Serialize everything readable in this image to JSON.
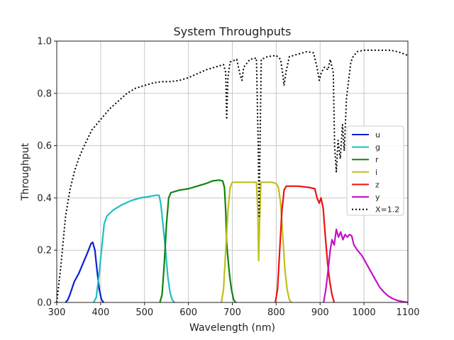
{
  "chart_data": {
    "type": "line",
    "title": "System Throughputs",
    "xlabel": "Wavelength (nm)",
    "ylabel": "Throughput",
    "xlim": [
      300,
      1100
    ],
    "ylim": [
      0.0,
      1.0
    ],
    "x_ticks": [
      "300",
      "400",
      "500",
      "600",
      "700",
      "800",
      "900",
      "1000",
      "1100"
    ],
    "y_ticks": [
      "0.0",
      "0.2",
      "0.4",
      "0.6",
      "0.8",
      "1.0"
    ],
    "grid": true,
    "legend_position": "right",
    "series": [
      {
        "name": "u",
        "color": "#0a1fd6",
        "style": "solid",
        "points": [
          [
            320,
            0
          ],
          [
            325,
            0.01
          ],
          [
            330,
            0.03
          ],
          [
            340,
            0.08
          ],
          [
            350,
            0.11
          ],
          [
            360,
            0.15
          ],
          [
            370,
            0.19
          ],
          [
            378,
            0.225
          ],
          [
            382,
            0.23
          ],
          [
            387,
            0.2
          ],
          [
            392,
            0.12
          ],
          [
            397,
            0.05
          ],
          [
            402,
            0.01
          ],
          [
            407,
            0
          ]
        ]
      },
      {
        "name": "g",
        "color": "#1ebfbf",
        "style": "solid",
        "points": [
          [
            384,
            0
          ],
          [
            390,
            0.02
          ],
          [
            396,
            0.1
          ],
          [
            402,
            0.2
          ],
          [
            408,
            0.3
          ],
          [
            414,
            0.33
          ],
          [
            430,
            0.355
          ],
          [
            450,
            0.375
          ],
          [
            470,
            0.39
          ],
          [
            490,
            0.4
          ],
          [
            510,
            0.405
          ],
          [
            525,
            0.41
          ],
          [
            533,
            0.41
          ],
          [
            537,
            0.38
          ],
          [
            542,
            0.3
          ],
          [
            548,
            0.2
          ],
          [
            553,
            0.1
          ],
          [
            558,
            0.04
          ],
          [
            563,
            0.01
          ],
          [
            568,
            0
          ]
        ]
      },
      {
        "name": "r",
        "color": "#118311",
        "style": "solid",
        "points": [
          [
            535,
            0
          ],
          [
            540,
            0.03
          ],
          [
            545,
            0.15
          ],
          [
            550,
            0.3
          ],
          [
            555,
            0.4
          ],
          [
            560,
            0.42
          ],
          [
            580,
            0.43
          ],
          [
            600,
            0.435
          ],
          [
            620,
            0.445
          ],
          [
            640,
            0.455
          ],
          [
            655,
            0.465
          ],
          [
            670,
            0.468
          ],
          [
            678,
            0.465
          ],
          [
            682,
            0.44
          ],
          [
            685,
            0.35
          ],
          [
            687,
            0.23
          ],
          [
            690,
            0.17
          ],
          [
            694,
            0.1
          ],
          [
            698,
            0.05
          ],
          [
            703,
            0.01
          ],
          [
            708,
            0
          ]
        ]
      },
      {
        "name": "i",
        "color": "#bfbf1f",
        "style": "solid",
        "points": [
          [
            675,
            0
          ],
          [
            680,
            0.05
          ],
          [
            685,
            0.2
          ],
          [
            690,
            0.35
          ],
          [
            695,
            0.44
          ],
          [
            700,
            0.46
          ],
          [
            720,
            0.46
          ],
          [
            740,
            0.46
          ],
          [
            755,
            0.46
          ],
          [
            758,
            0.35
          ],
          [
            760,
            0.16
          ],
          [
            762,
            0.3
          ],
          [
            765,
            0.46
          ],
          [
            790,
            0.46
          ],
          [
            800,
            0.455
          ],
          [
            805,
            0.44
          ],
          [
            810,
            0.38
          ],
          [
            815,
            0.25
          ],
          [
            820,
            0.12
          ],
          [
            825,
            0.05
          ],
          [
            830,
            0.01
          ],
          [
            835,
            0
          ]
        ]
      },
      {
        "name": "z",
        "color": "#f01010",
        "style": "solid",
        "points": [
          [
            798,
            0
          ],
          [
            803,
            0.05
          ],
          [
            808,
            0.2
          ],
          [
            813,
            0.35
          ],
          [
            818,
            0.43
          ],
          [
            823,
            0.445
          ],
          [
            850,
            0.445
          ],
          [
            875,
            0.44
          ],
          [
            888,
            0.435
          ],
          [
            893,
            0.4
          ],
          [
            898,
            0.38
          ],
          [
            902,
            0.4
          ],
          [
            907,
            0.36
          ],
          [
            912,
            0.25
          ],
          [
            917,
            0.15
          ],
          [
            922,
            0.08
          ],
          [
            927,
            0.03
          ],
          [
            932,
            0
          ]
        ]
      },
      {
        "name": "y",
        "color": "#c411c4",
        "style": "solid",
        "points": [
          [
            908,
            0
          ],
          [
            913,
            0.05
          ],
          [
            918,
            0.12
          ],
          [
            923,
            0.2
          ],
          [
            927,
            0.24
          ],
          [
            932,
            0.22
          ],
          [
            937,
            0.28
          ],
          [
            942,
            0.25
          ],
          [
            947,
            0.27
          ],
          [
            952,
            0.24
          ],
          [
            957,
            0.26
          ],
          [
            962,
            0.25
          ],
          [
            967,
            0.26
          ],
          [
            972,
            0.255
          ],
          [
            977,
            0.22
          ],
          [
            985,
            0.2
          ],
          [
            995,
            0.18
          ],
          [
            1005,
            0.15
          ],
          [
            1015,
            0.12
          ],
          [
            1025,
            0.09
          ],
          [
            1035,
            0.06
          ],
          [
            1045,
            0.04
          ],
          [
            1055,
            0.025
          ],
          [
            1065,
            0.015
          ],
          [
            1075,
            0.008
          ],
          [
            1085,
            0.004
          ],
          [
            1095,
            0.002
          ],
          [
            1100,
            0
          ]
        ]
      },
      {
        "name": "X=1.2",
        "color": "#000000",
        "style": "dotted",
        "points": [
          [
            300,
            0
          ],
          [
            310,
            0.15
          ],
          [
            320,
            0.33
          ],
          [
            330,
            0.43
          ],
          [
            340,
            0.5
          ],
          [
            350,
            0.55
          ],
          [
            360,
            0.59
          ],
          [
            380,
            0.66
          ],
          [
            400,
            0.7
          ],
          [
            420,
            0.74
          ],
          [
            440,
            0.77
          ],
          [
            460,
            0.8
          ],
          [
            480,
            0.82
          ],
          [
            500,
            0.83
          ],
          [
            520,
            0.84
          ],
          [
            540,
            0.845
          ],
          [
            560,
            0.845
          ],
          [
            580,
            0.85
          ],
          [
            600,
            0.86
          ],
          [
            620,
            0.875
          ],
          [
            640,
            0.89
          ],
          [
            660,
            0.9
          ],
          [
            680,
            0.91
          ],
          [
            685,
            0.88
          ],
          [
            687,
            0.7
          ],
          [
            690,
            0.86
          ],
          [
            695,
            0.92
          ],
          [
            710,
            0.93
          ],
          [
            718,
            0.87
          ],
          [
            722,
            0.85
          ],
          [
            726,
            0.9
          ],
          [
            740,
            0.93
          ],
          [
            755,
            0.935
          ],
          [
            759,
            0.6
          ],
          [
            761,
            0.33
          ],
          [
            763,
            0.6
          ],
          [
            766,
            0.93
          ],
          [
            780,
            0.94
          ],
          [
            800,
            0.945
          ],
          [
            810,
            0.93
          ],
          [
            815,
            0.87
          ],
          [
            818,
            0.83
          ],
          [
            822,
            0.88
          ],
          [
            830,
            0.94
          ],
          [
            850,
            0.95
          ],
          [
            870,
            0.96
          ],
          [
            885,
            0.955
          ],
          [
            893,
            0.9
          ],
          [
            898,
            0.85
          ],
          [
            903,
            0.88
          ],
          [
            910,
            0.9
          ],
          [
            918,
            0.89
          ],
          [
            923,
            0.93
          ],
          [
            930,
            0.88
          ],
          [
            933,
            0.6
          ],
          [
            937,
            0.5
          ],
          [
            941,
            0.62
          ],
          [
            946,
            0.55
          ],
          [
            951,
            0.68
          ],
          [
            955,
            0.58
          ],
          [
            960,
            0.78
          ],
          [
            965,
            0.85
          ],
          [
            970,
            0.92
          ],
          [
            975,
            0.94
          ],
          [
            985,
            0.96
          ],
          [
            1000,
            0.965
          ],
          [
            1020,
            0.965
          ],
          [
            1040,
            0.965
          ],
          [
            1060,
            0.965
          ],
          [
            1075,
            0.96
          ],
          [
            1085,
            0.955
          ],
          [
            1092,
            0.95
          ],
          [
            1100,
            0.945
          ]
        ]
      }
    ]
  }
}
